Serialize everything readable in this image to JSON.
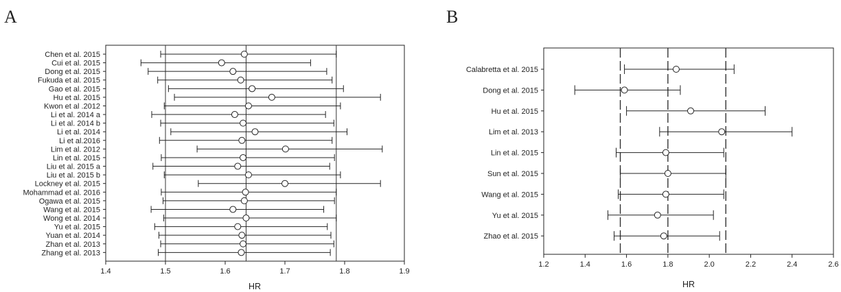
{
  "chart_data": [
    {
      "type": "scatter",
      "panel_label": "A",
      "xlabel": "HR",
      "ylabel": "",
      "xlim": [
        1.4,
        1.9
      ],
      "x_ticks": [
        "1.4",
        "1.5",
        "1.6",
        "1.7",
        "1.8",
        "1.9"
      ],
      "reference_lines": [
        1.5,
        1.635,
        1.786
      ],
      "reference_line_style": "solid",
      "grid": false,
      "legend": "none",
      "marker": "open circle with horizontal error bars",
      "categories": [
        "Chen et al. 2015",
        "Cui et al. 2015",
        "Dong et al. 2015",
        "Fukuda et al. 2015",
        "Gao et al. 2015",
        "Hu et al. 2015",
        "Kwon et al .2012",
        "Li et al. 2014 a",
        "Li et al. 2014 b",
        "Li et al. 2014",
        "Li et al.2016",
        "Lim et al. 2012",
        "Lin et al. 2015",
        "Liu et al. 2015 a",
        "Liu et al. 2015 b",
        "Lockney et al. 2015",
        "Mohammad et al. 2016",
        "Ogawa et al. 2015",
        "Wang et al. 2015",
        "Wong et al. 2014",
        "Yu et al. 2015",
        "Yuan et al. 2014",
        "Zhan et al. 2013",
        "Zhang et al. 2013"
      ],
      "points": [
        {
          "hr": 1.632,
          "lower": 1.492,
          "upper": 1.786
        },
        {
          "hr": 1.594,
          "lower": 1.459,
          "upper": 1.743
        },
        {
          "hr": 1.613,
          "lower": 1.471,
          "upper": 1.77
        },
        {
          "hr": 1.626,
          "lower": 1.487,
          "upper": 1.779
        },
        {
          "hr": 1.645,
          "lower": 1.505,
          "upper": 1.798
        },
        {
          "hr": 1.678,
          "lower": 1.515,
          "upper": 1.86
        },
        {
          "hr": 1.639,
          "lower": 1.498,
          "upper": 1.793
        },
        {
          "hr": 1.616,
          "lower": 1.477,
          "upper": 1.768
        },
        {
          "hr": 1.63,
          "lower": 1.492,
          "upper": 1.782
        },
        {
          "hr": 1.65,
          "lower": 1.509,
          "upper": 1.804
        },
        {
          "hr": 1.628,
          "lower": 1.49,
          "upper": 1.779
        },
        {
          "hr": 1.701,
          "lower": 1.553,
          "upper": 1.863
        },
        {
          "hr": 1.63,
          "lower": 1.493,
          "upper": 1.783
        },
        {
          "hr": 1.621,
          "lower": 1.479,
          "upper": 1.775
        },
        {
          "hr": 1.639,
          "lower": 1.498,
          "upper": 1.793
        },
        {
          "hr": 1.7,
          "lower": 1.555,
          "upper": 1.86
        },
        {
          "hr": 1.634,
          "lower": 1.493,
          "upper": 1.786
        },
        {
          "hr": 1.632,
          "lower": 1.496,
          "upper": 1.783
        },
        {
          "hr": 1.613,
          "lower": 1.476,
          "upper": 1.765
        },
        {
          "hr": 1.635,
          "lower": 1.497,
          "upper": 1.786
        },
        {
          "hr": 1.621,
          "lower": 1.482,
          "upper": 1.771
        },
        {
          "hr": 1.628,
          "lower": 1.489,
          "upper": 1.777
        },
        {
          "hr": 1.63,
          "lower": 1.492,
          "upper": 1.782
        },
        {
          "hr": 1.627,
          "lower": 1.488,
          "upper": 1.776
        }
      ]
    },
    {
      "type": "scatter",
      "panel_label": "B",
      "xlabel": "HR",
      "ylabel": "",
      "xlim": [
        1.2,
        2.6
      ],
      "x_ticks": [
        "1.2",
        "1.4",
        "1.6",
        "1.8",
        "2.0",
        "2.2",
        "2.4",
        "2.6"
      ],
      "reference_lines": [
        1.57,
        1.8,
        2.08
      ],
      "reference_line_style": "dashed",
      "grid": false,
      "legend": "none",
      "marker": "open circle with horizontal error bars",
      "categories": [
        "Calabretta et al. 2015",
        "Dong et al. 2015",
        "Hu et al. 2015",
        "Lim et al. 2013",
        "Lin et al. 2015",
        "Sun et al. 2015",
        "Wang et al. 2015",
        "Yu et al. 2015",
        "Zhao et al. 2015"
      ],
      "points": [
        {
          "hr": 1.84,
          "lower": 1.59,
          "upper": 2.12
        },
        {
          "hr": 1.59,
          "lower": 1.35,
          "upper": 1.86
        },
        {
          "hr": 1.91,
          "lower": 1.6,
          "upper": 2.27
        },
        {
          "hr": 2.06,
          "lower": 1.76,
          "upper": 2.4
        },
        {
          "hr": 1.79,
          "lower": 1.55,
          "upper": 2.07
        },
        {
          "hr": 1.8,
          "lower": 1.57,
          "upper": 2.08
        },
        {
          "hr": 1.79,
          "lower": 1.56,
          "upper": 2.07
        },
        {
          "hr": 1.75,
          "lower": 1.51,
          "upper": 2.02
        },
        {
          "hr": 1.78,
          "lower": 1.54,
          "upper": 2.05
        }
      ]
    }
  ]
}
